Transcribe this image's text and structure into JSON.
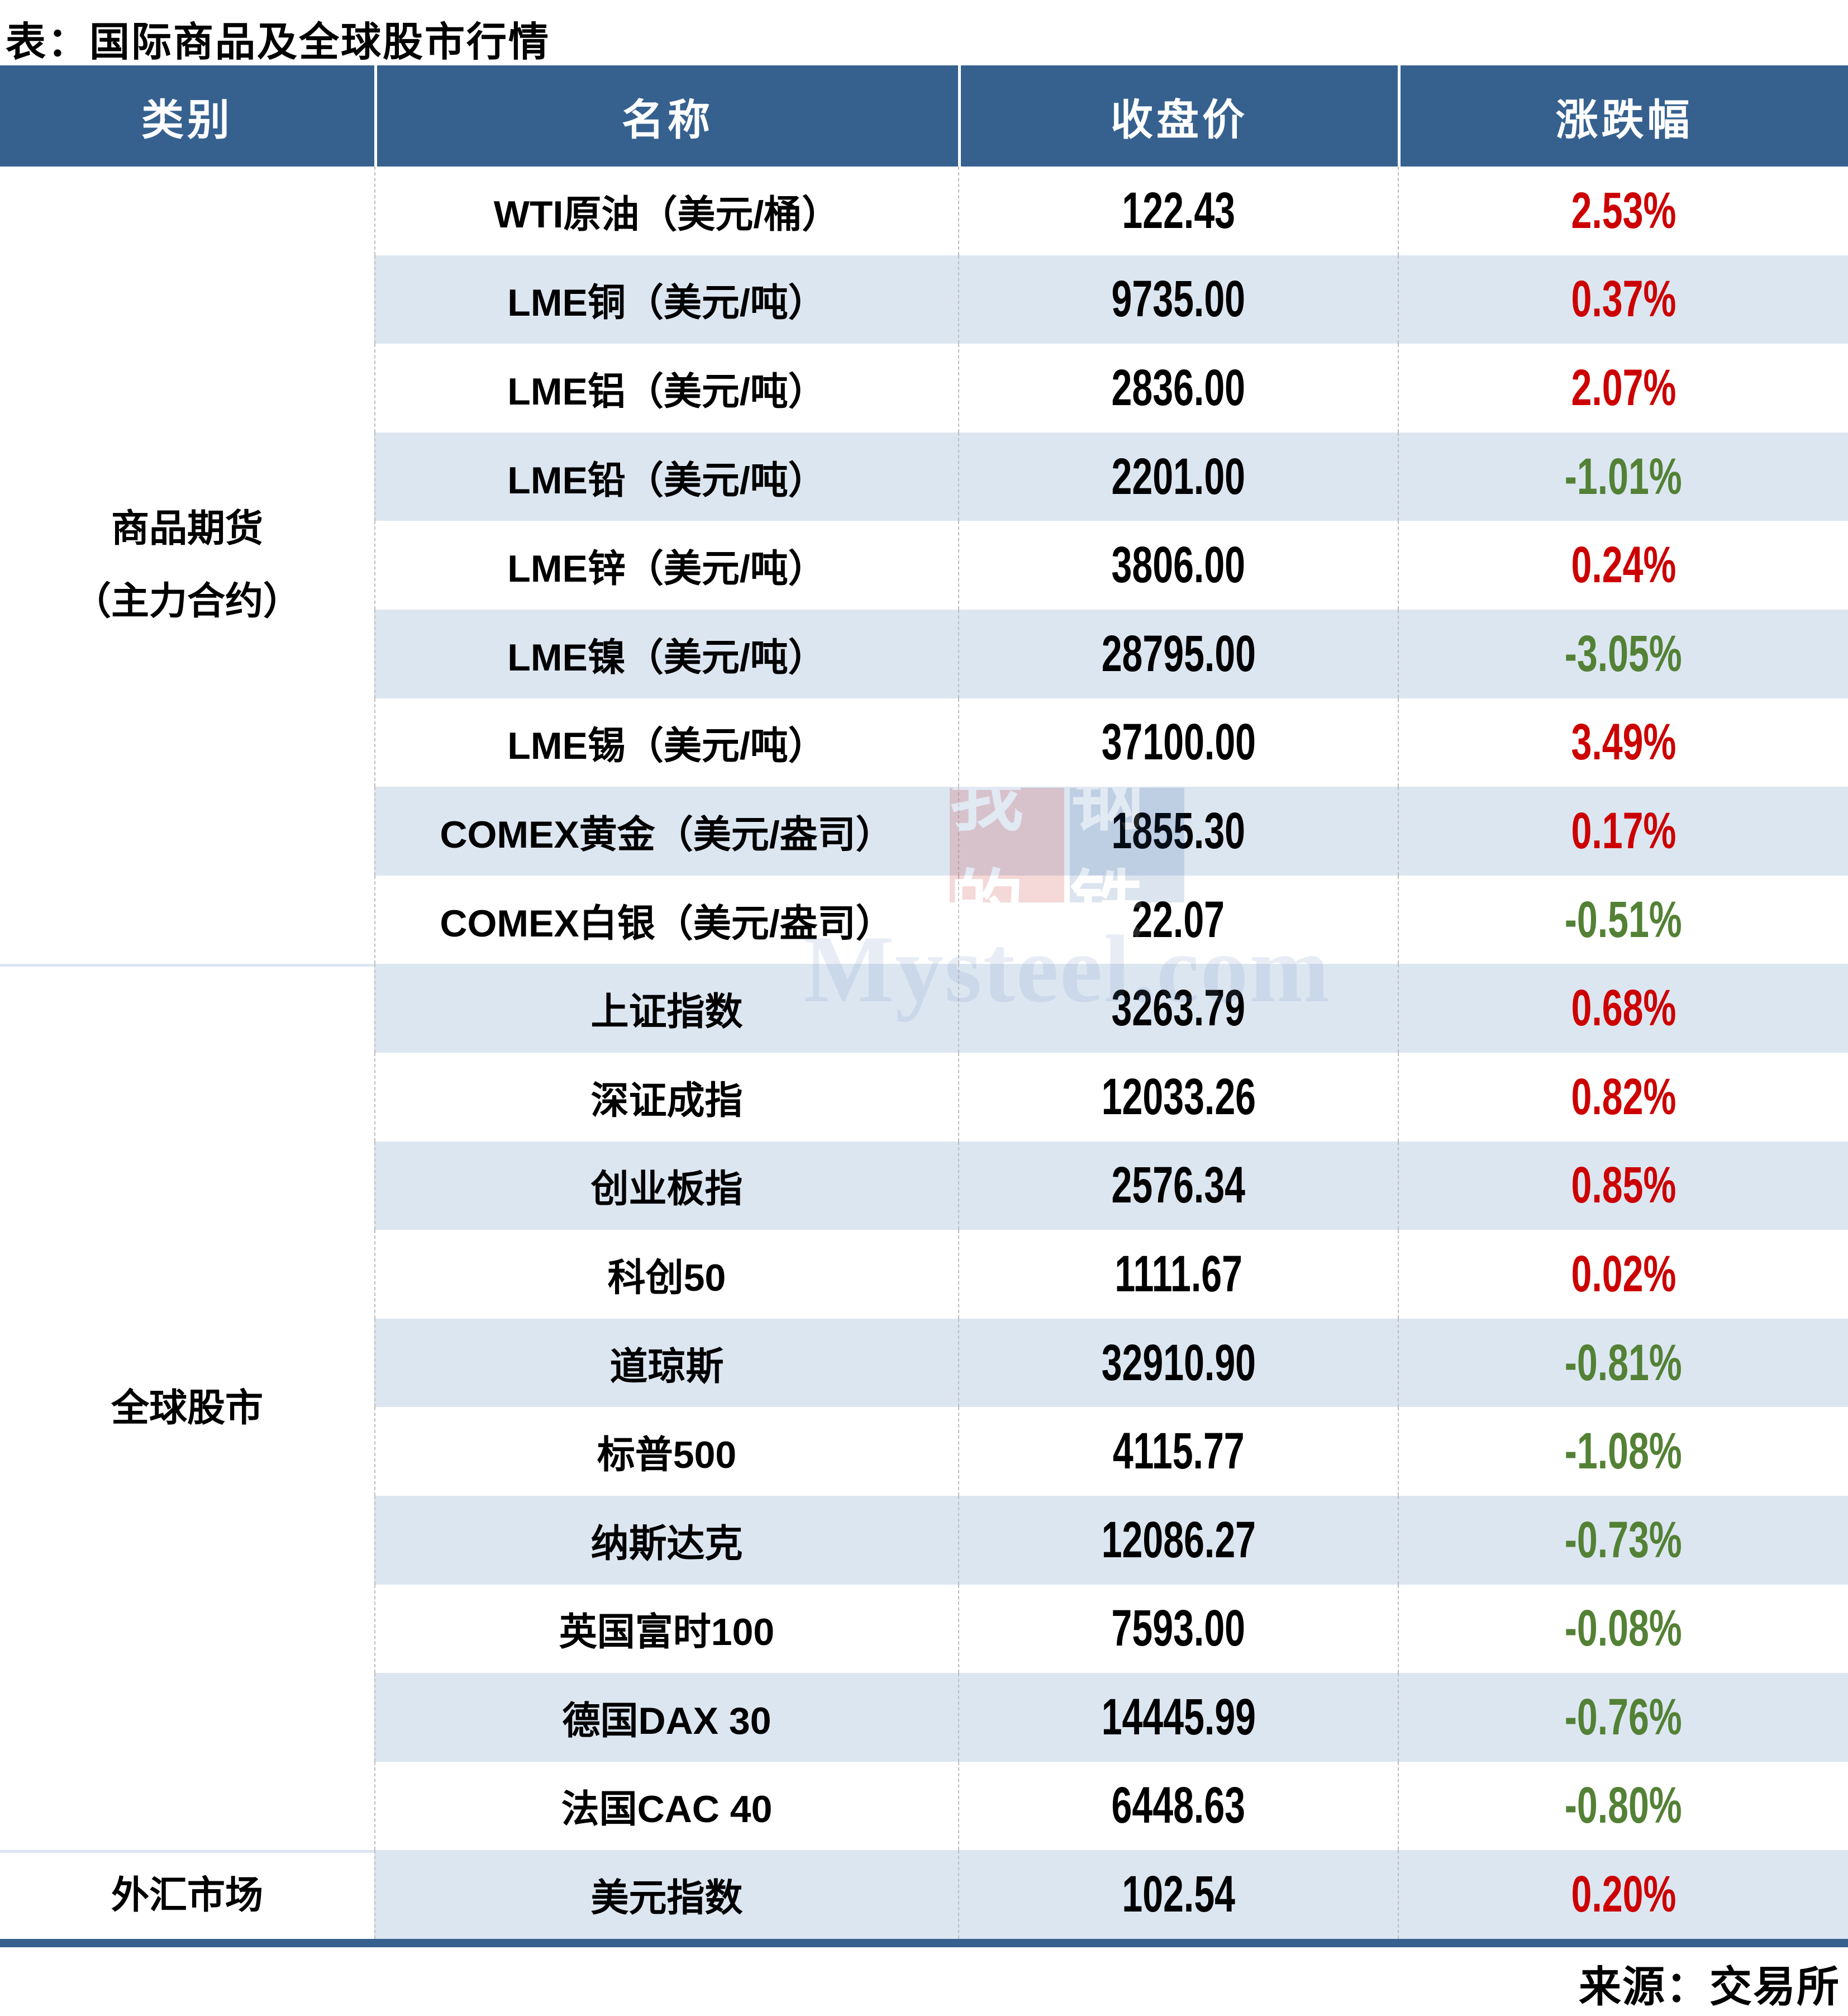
{
  "title": "表：国际商品及全球股市行情",
  "source_label": "来源：交易所",
  "watermark": {
    "block_red": "我的",
    "block_blue": "钢铁",
    "wordmark": "Mysteel.com"
  },
  "colors": {
    "header_bg": "#36618F",
    "band_bg": "#DCE6F1",
    "up_red": "#CC0000",
    "down_green": "#538135",
    "bottom_bar": "#36618F"
  },
  "table": {
    "headers": [
      "类别",
      "名称",
      "收盘价",
      "涨跌幅"
    ],
    "groups": [
      {
        "lines": [
          "商品期货",
          "（主力合约）"
        ],
        "row_span": 9
      },
      {
        "lines": [
          "全球股市"
        ],
        "row_span": 10
      },
      {
        "lines": [
          "外汇市场"
        ],
        "row_span": 1
      }
    ],
    "rows": [
      {
        "name": "WTI原油（美元/桶）",
        "close": "122.43",
        "change": "2.53%",
        "direction": "up"
      },
      {
        "name": "LME铜（美元/吨）",
        "close": "9735.00",
        "change": "0.37%",
        "direction": "up"
      },
      {
        "name": "LME铝（美元/吨）",
        "close": "2836.00",
        "change": "2.07%",
        "direction": "up"
      },
      {
        "name": "LME铅（美元/吨）",
        "close": "2201.00",
        "change": "-1.01%",
        "direction": "down"
      },
      {
        "name": "LME锌（美元/吨）",
        "close": "3806.00",
        "change": "0.24%",
        "direction": "up"
      },
      {
        "name": "LME镍（美元/吨）",
        "close": "28795.00",
        "change": "-3.05%",
        "direction": "down"
      },
      {
        "name": "LME锡（美元/吨）",
        "close": "37100.00",
        "change": "3.49%",
        "direction": "up"
      },
      {
        "name": "COMEX黄金（美元/盎司）",
        "close": "1855.30",
        "change": "0.17%",
        "direction": "up"
      },
      {
        "name": "COMEX白银（美元/盎司）",
        "close": "22.07",
        "change": "-0.51%",
        "direction": "down"
      },
      {
        "name": "上证指数",
        "close": "3263.79",
        "change": "0.68%",
        "direction": "up"
      },
      {
        "name": "深证成指",
        "close": "12033.26",
        "change": "0.82%",
        "direction": "up"
      },
      {
        "name": "创业板指",
        "close": "2576.34",
        "change": "0.85%",
        "direction": "up"
      },
      {
        "name": "科创50",
        "close": "1111.67",
        "change": "0.02%",
        "direction": "up"
      },
      {
        "name": "道琼斯",
        "close": "32910.90",
        "change": "-0.81%",
        "direction": "down"
      },
      {
        "name": "标普500",
        "close": "4115.77",
        "change": "-1.08%",
        "direction": "down"
      },
      {
        "name": "纳斯达克",
        "close": "12086.27",
        "change": "-0.73%",
        "direction": "down"
      },
      {
        "name": "英国富时100",
        "close": "7593.00",
        "change": "-0.08%",
        "direction": "down"
      },
      {
        "name": "德国DAX 30",
        "close": "14445.99",
        "change": "-0.76%",
        "direction": "down"
      },
      {
        "name": "法国CAC 40",
        "close": "6448.63",
        "change": "-0.80%",
        "direction": "down"
      },
      {
        "name": "美元指数",
        "close": "102.54",
        "change": "0.20%",
        "direction": "up"
      }
    ]
  },
  "chart_data": {
    "type": "table",
    "title": "表：国际商品及全球股市行情",
    "columns": [
      "类别",
      "名称",
      "收盘价",
      "涨跌幅"
    ],
    "rows": [
      [
        "商品期货（主力合约）",
        "WTI原油（美元/桶）",
        122.43,
        2.53
      ],
      [
        "商品期货（主力合约）",
        "LME铜（美元/吨）",
        9735.0,
        0.37
      ],
      [
        "商品期货（主力合约）",
        "LME铝（美元/吨）",
        2836.0,
        2.07
      ],
      [
        "商品期货（主力合约）",
        "LME铅（美元/吨）",
        2201.0,
        -1.01
      ],
      [
        "商品期货（主力合约）",
        "LME锌（美元/吨）",
        3806.0,
        0.24
      ],
      [
        "商品期货（主力合约）",
        "LME镍（美元/吨）",
        28795.0,
        -3.05
      ],
      [
        "商品期货（主力合约）",
        "LME锡（美元/吨）",
        37100.0,
        3.49
      ],
      [
        "商品期货（主力合约）",
        "COMEX黄金（美元/盎司）",
        1855.3,
        0.17
      ],
      [
        "商品期货（主力合约）",
        "COMEX白银（美元/盎司）",
        22.07,
        -0.51
      ],
      [
        "全球股市",
        "上证指数",
        3263.79,
        0.68
      ],
      [
        "全球股市",
        "深证成指",
        12033.26,
        0.82
      ],
      [
        "全球股市",
        "创业板指",
        2576.34,
        0.85
      ],
      [
        "全球股市",
        "科创50",
        1111.67,
        0.02
      ],
      [
        "全球股市",
        "道琼斯",
        32910.9,
        -0.81
      ],
      [
        "全球股市",
        "标普500",
        4115.77,
        -1.08
      ],
      [
        "全球股市",
        "纳斯达克",
        12086.27,
        -0.73
      ],
      [
        "全球股市",
        "英国富时100",
        7593.0,
        -0.08
      ],
      [
        "全球股市",
        "德国DAX 30",
        14445.99,
        -0.76
      ],
      [
        "全球股市",
        "法国CAC 40",
        6448.63,
        -0.8
      ],
      [
        "外汇市场",
        "美元指数",
        102.54,
        0.2
      ]
    ],
    "change_unit": "%",
    "color_legend": {
      "red": "上涨",
      "green": "下跌"
    },
    "source": "来源：交易所"
  }
}
